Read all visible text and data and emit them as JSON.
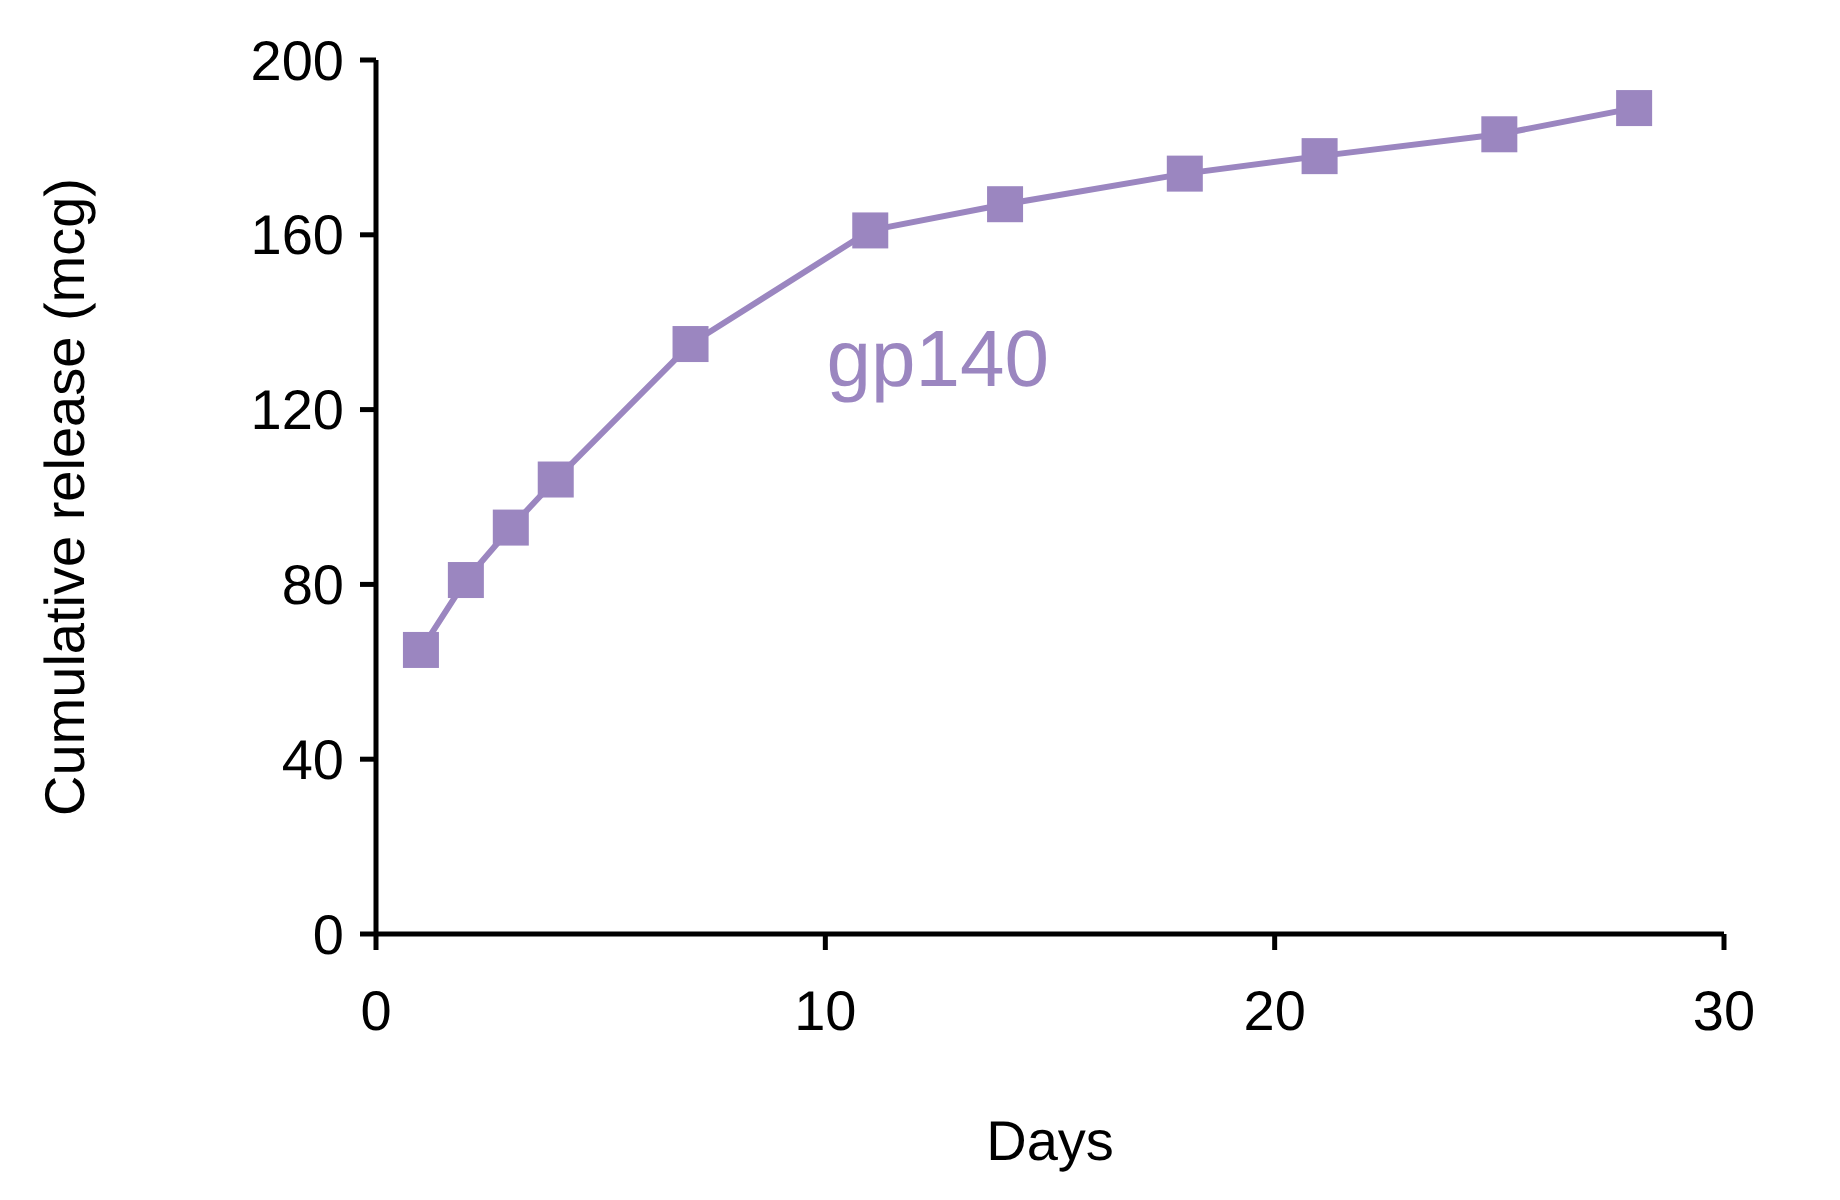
{
  "chart_data": {
    "type": "line",
    "xlabel": "Days",
    "ylabel": "Cumulative release (mcg)",
    "xlim": [
      0,
      30
    ],
    "xticks": [
      0,
      10,
      20,
      30
    ],
    "ylim": [
      0,
      200
    ],
    "yticks": [
      0,
      40,
      80,
      120,
      160,
      200
    ],
    "marker": "square",
    "line_style": "solid",
    "grid": false,
    "legend": false,
    "series": [
      {
        "name": "gp140",
        "color": "#9b86c0",
        "x": [
          1,
          2,
          3,
          4,
          7,
          11,
          14,
          18,
          21,
          25,
          28
        ],
        "values": [
          65,
          81,
          93,
          104,
          135,
          161,
          167,
          174,
          178,
          183,
          189
        ]
      }
    ]
  }
}
